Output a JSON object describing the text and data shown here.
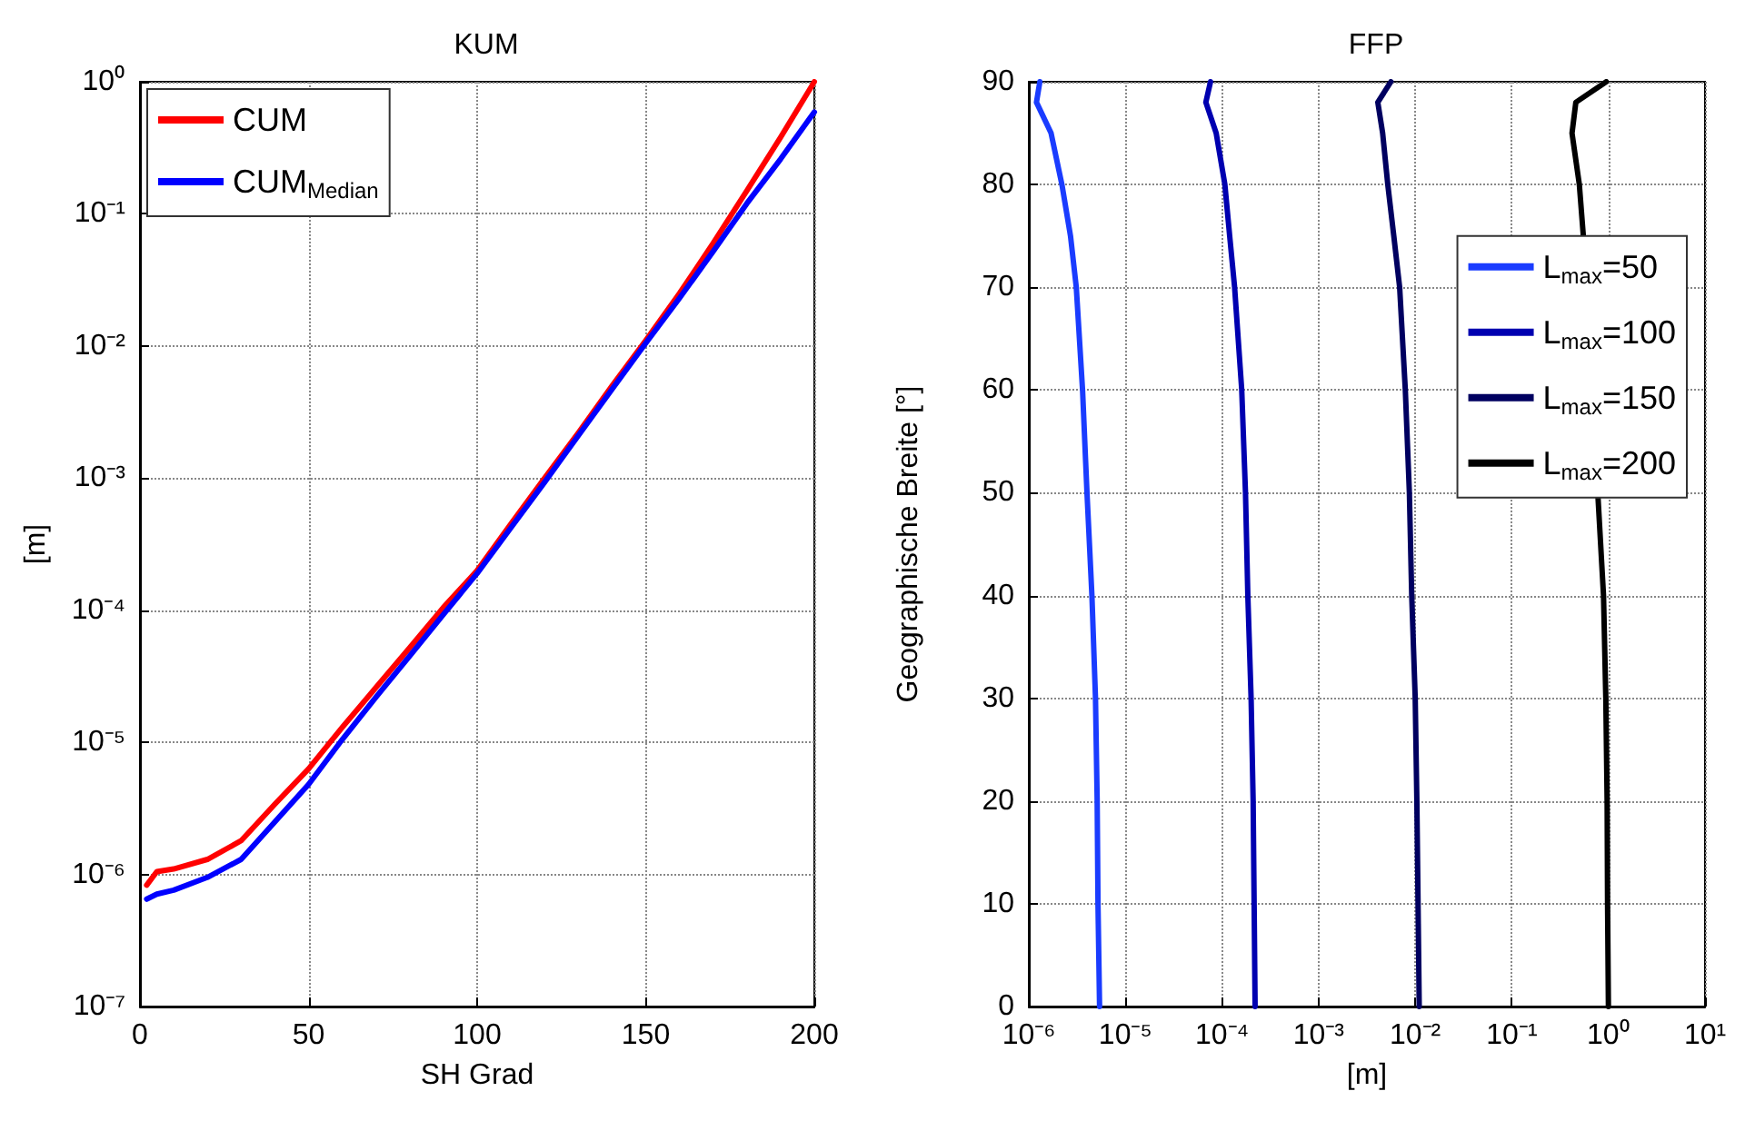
{
  "chart_data": [
    {
      "type": "line",
      "title": "KUM",
      "xlabel": "SH Grad",
      "ylabel": "[m]",
      "x": [
        2,
        5,
        10,
        20,
        30,
        40,
        50,
        60,
        70,
        80,
        90,
        100,
        110,
        120,
        130,
        140,
        150,
        160,
        170,
        180,
        190,
        200
      ],
      "series": [
        {
          "name": "CUM",
          "color": "#ff0000",
          "values": [
            8.3e-07,
            1.05e-06,
            1.1e-06,
            1.3e-06,
            1.8e-06,
            3.4e-06,
            6.3e-06,
            1.3e-05,
            2.6e-05,
            5.2e-05,
            0.000105,
            0.0002,
            0.00045,
            0.001,
            0.0022,
            0.005,
            0.011,
            0.025,
            0.06,
            0.15,
            0.38,
            1.0
          ]
        },
        {
          "name": "CUM$_{Median}$",
          "color": "#0000ff",
          "values": [
            6.5e-07,
            7.1e-07,
            7.6e-07,
            9.5e-07,
            1.3e-06,
            2.5e-06,
            4.8e-06,
            1.05e-05,
            2.2e-05,
            4.5e-05,
            9.3e-05,
            0.00019,
            0.00042,
            0.00093,
            0.0021,
            0.0047,
            0.0105,
            0.023,
            0.052,
            0.12,
            0.26,
            0.59
          ]
        }
      ],
      "xlim": [
        0,
        200
      ],
      "xticks": [
        0,
        50,
        100,
        150,
        200
      ],
      "ylim": [
        1e-07,
        1
      ],
      "yticks": [
        {
          "value": 1e-07,
          "label": "10⁻⁷"
        },
        {
          "value": 1e-06,
          "label": "10⁻⁶"
        },
        {
          "value": 1e-05,
          "label": "10⁻⁵"
        },
        {
          "value": 0.0001,
          "label": "10⁻⁴"
        },
        {
          "value": 0.001,
          "label": "10⁻³"
        },
        {
          "value": 0.01,
          "label": "10⁻²"
        },
        {
          "value": 0.1,
          "label": "10⁻¹"
        },
        {
          "value": 1,
          "label": "10⁰"
        }
      ],
      "log": "y",
      "grid": true,
      "legend": "top left",
      "marker": "none",
      "line_style": "solid"
    },
    {
      "type": "line",
      "title": "FFP",
      "xlabel": "[m]",
      "ylabel": "Geographische Breite [°]",
      "series": [
        {
          "name": "L$_{max}$=50",
          "color": "#1a3cff",
          "x": [
            5.4e-06,
            5.2e-06,
            5.1e-06,
            4.9e-06,
            4.5e-06,
            4e-06,
            3.6e-06,
            3.1e-06,
            2.7e-06,
            2.2e-06,
            1.7e-06,
            1.2e-06,
            1.3e-06
          ],
          "values": [
            0,
            10,
            20,
            30,
            40,
            50,
            60,
            70,
            75,
            80,
            85,
            88,
            90
          ]
        },
        {
          "name": "L$_{max}$=100",
          "color": "#0000b0",
          "x": [
            0.00022,
            0.000215,
            0.00021,
            0.0002,
            0.000185,
            0.000175,
            0.00016,
            0.000135,
            0.00012,
            0.000107,
            8.7e-05,
            6.8e-05,
            7.6e-05
          ],
          "values": [
            0,
            10,
            20,
            30,
            40,
            50,
            60,
            70,
            75,
            80,
            85,
            88,
            90
          ]
        },
        {
          "name": "L$_{max}$=150",
          "color": "#000060",
          "x": [
            0.011,
            0.0107,
            0.0104,
            0.01,
            0.0092,
            0.0087,
            0.0079,
            0.0069,
            0.006,
            0.0052,
            0.0046,
            0.0041,
            0.0056
          ],
          "values": [
            0,
            10,
            20,
            30,
            40,
            50,
            60,
            70,
            75,
            80,
            85,
            88,
            90
          ]
        },
        {
          "name": "L$_{max}$=200",
          "color": "#000000",
          "x": [
            1.0,
            0.98,
            0.97,
            0.94,
            0.89,
            0.55,
            0.5,
            0.42,
            0.46,
            0.95
          ],
          "values": [
            0,
            10,
            20,
            30,
            40,
            75,
            80,
            85,
            88,
            90
          ]
        }
      ],
      "xlim": [
        1e-06,
        10
      ],
      "xticks": [
        {
          "value": 1e-06,
          "label": "10⁻⁶"
        },
        {
          "value": 1e-05,
          "label": "10⁻⁵"
        },
        {
          "value": 0.0001,
          "label": "10⁻⁴"
        },
        {
          "value": 0.001,
          "label": "10⁻³"
        },
        {
          "value": 0.01,
          "label": "10⁻²"
        },
        {
          "value": 0.1,
          "label": "10⁻¹"
        },
        {
          "value": 1,
          "label": "10⁰"
        },
        {
          "value": 10,
          "label": "10¹"
        }
      ],
      "ylim": [
        0,
        90
      ],
      "yticks": [
        0,
        10,
        20,
        30,
        40,
        50,
        60,
        70,
        80,
        90
      ],
      "log": "x",
      "grid": true,
      "legend": "right",
      "marker": "none",
      "line_style": "solid"
    }
  ]
}
